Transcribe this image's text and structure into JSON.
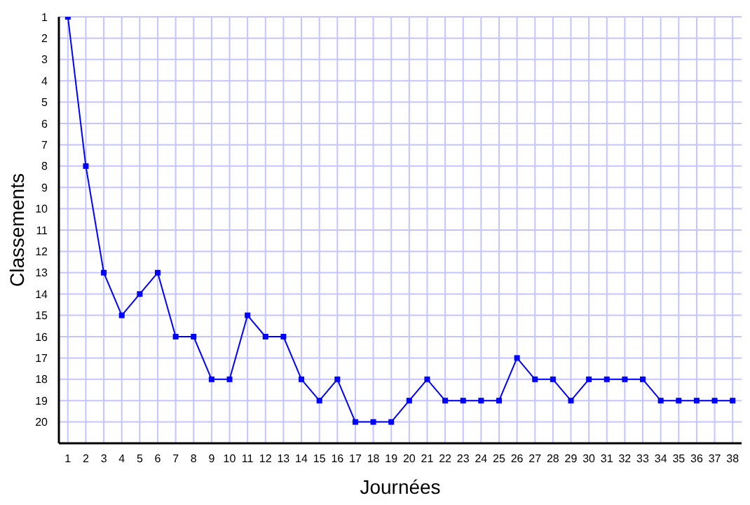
{
  "chart_data": {
    "type": "line",
    "xlabel": "Journées",
    "ylabel": "Classements",
    "x": [
      1,
      2,
      3,
      4,
      5,
      6,
      7,
      8,
      9,
      10,
      11,
      12,
      13,
      14,
      15,
      16,
      17,
      18,
      19,
      20,
      21,
      22,
      23,
      24,
      25,
      26,
      27,
      28,
      29,
      30,
      31,
      32,
      33,
      34,
      35,
      36,
      37,
      38
    ],
    "series": [
      {
        "color": "#0000ff",
        "values": [
          1,
          8,
          13,
          15,
          14,
          13,
          16,
          16,
          18,
          18,
          15,
          16,
          16,
          18,
          19,
          18,
          20,
          20,
          20,
          19,
          18,
          19,
          19,
          19,
          19,
          17,
          18,
          18,
          19,
          18,
          18,
          18,
          18,
          19,
          19,
          19,
          19,
          19
        ]
      }
    ],
    "xlim": [
      0.5,
      38.5
    ],
    "xticks": [
      1,
      2,
      3,
      4,
      5,
      6,
      7,
      8,
      9,
      10,
      11,
      12,
      13,
      14,
      15,
      16,
      17,
      18,
      19,
      20,
      21,
      22,
      23,
      24,
      25,
      26,
      27,
      28,
      29,
      30,
      31,
      32,
      33,
      34,
      35,
      36,
      37,
      38
    ],
    "ylim": [
      21,
      1
    ],
    "yticks": [
      1,
      2,
      3,
      4,
      5,
      6,
      7,
      8,
      9,
      10,
      11,
      12,
      13,
      14,
      15,
      16,
      17,
      18,
      19,
      20
    ],
    "grid": true,
    "legend": false,
    "marker": "square",
    "line_style": "solid"
  }
}
